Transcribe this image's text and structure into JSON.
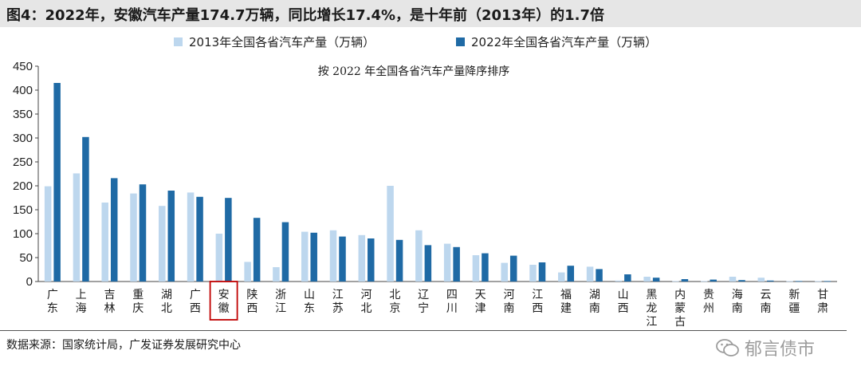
{
  "header": {
    "title": "图4：2022年，安徽汽车产量174.7万辆，同比增长17.4%，是十年前（2013年）的1.7倍"
  },
  "footer": {
    "source": "数据来源：国家统计局，广发证券发展研究中心",
    "watermark": "郁言债市"
  },
  "chart_data": {
    "type": "bar",
    "subtitle": "按 2022 年全国各省汽车产量降序排序",
    "ylim": [
      0,
      450
    ],
    "yticks": [
      0,
      50,
      100,
      150,
      200,
      250,
      300,
      350,
      400,
      450
    ],
    "categories": [
      "广东",
      "上海",
      "吉林",
      "重庆",
      "湖北",
      "广西",
      "安徽",
      "陕西",
      "浙江",
      "山东",
      "江苏",
      "河北",
      "北京",
      "辽宁",
      "四川",
      "天津",
      "河南",
      "江西",
      "福建",
      "湖南",
      "山西",
      "黑龙江",
      "内蒙古",
      "贵州",
      "海南",
      "云南",
      "新疆",
      "甘肃"
    ],
    "highlighted_category": "安徽",
    "grid": false,
    "legend_position": "top",
    "series": [
      {
        "name": "2013年全国各省汽车产量（万辆）",
        "color": "#bdd7ee",
        "values": [
          199,
          226,
          165,
          184,
          158,
          186,
          100,
          41,
          30,
          104,
          107,
          97,
          200,
          107,
          79,
          55,
          39,
          35,
          19,
          31,
          2,
          10,
          1,
          1,
          10,
          8,
          1,
          1
        ]
      },
      {
        "name": "2022年全国各省汽车产量（万辆）",
        "color": "#1f6aa5",
        "values": [
          415,
          302,
          216,
          203,
          190,
          177,
          174.7,
          133,
          124,
          102,
          94,
          90,
          87,
          76,
          72,
          59,
          54,
          40,
          33,
          26,
          15,
          8,
          5,
          4,
          3,
          2,
          1,
          1
        ]
      }
    ]
  }
}
